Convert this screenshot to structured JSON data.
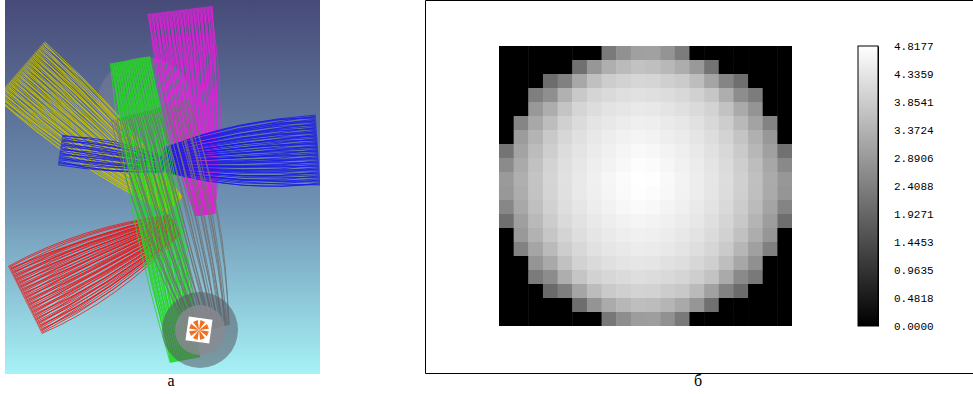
{
  "panel_labels": [
    "а",
    "б"
  ],
  "chart_data": {
    "type": "heatmap",
    "tick_labels": false,
    "cells": [
      [
        0,
        0,
        0,
        0,
        0,
        0,
        0,
        2.31,
        2.74,
        3.02,
        3.05,
        2.8,
        2.35,
        0,
        0,
        0,
        0,
        0,
        0,
        0
      ],
      [
        0,
        0,
        0,
        0,
        0,
        2.12,
        2.86,
        3.31,
        3.52,
        3.66,
        3.61,
        3.48,
        3.27,
        2.9,
        2.18,
        0,
        0,
        0,
        0,
        0
      ],
      [
        0,
        0,
        0,
        2.05,
        2.44,
        3.18,
        3.62,
        3.88,
        3.97,
        4.05,
        4.02,
        3.91,
        3.84,
        3.57,
        3.12,
        2.51,
        2.09,
        0,
        0,
        0
      ],
      [
        0,
        0,
        2.4,
        2.71,
        3.35,
        3.8,
        4.02,
        4.11,
        4.19,
        4.25,
        4.22,
        4.16,
        4.08,
        3.95,
        3.74,
        3.28,
        2.66,
        2.35,
        0,
        0
      ],
      [
        0,
        0,
        2.88,
        3.26,
        3.71,
        4.03,
        4.17,
        4.28,
        4.35,
        4.41,
        4.38,
        4.3,
        4.24,
        4.12,
        3.98,
        3.66,
        3.21,
        2.79,
        0,
        0
      ],
      [
        0,
        2.52,
        3.17,
        3.58,
        3.93,
        4.14,
        4.31,
        4.39,
        4.46,
        4.52,
        4.49,
        4.43,
        4.36,
        4.25,
        4.09,
        3.87,
        3.49,
        3.08,
        2.47,
        0
      ],
      [
        0,
        2.95,
        3.41,
        3.79,
        4.06,
        4.24,
        4.38,
        4.47,
        4.55,
        4.61,
        4.58,
        4.5,
        4.44,
        4.33,
        4.18,
        3.99,
        3.7,
        3.33,
        2.88,
        0
      ],
      [
        2.2,
        3.08,
        3.55,
        3.9,
        4.15,
        4.31,
        4.44,
        4.53,
        4.62,
        4.7,
        4.66,
        4.59,
        4.51,
        4.4,
        4.26,
        4.08,
        3.82,
        3.46,
        3.02,
        2.14
      ],
      [
        2.63,
        3.22,
        3.64,
        3.98,
        4.21,
        4.37,
        4.49,
        4.6,
        4.69,
        4.78,
        4.74,
        4.65,
        4.56,
        4.45,
        4.31,
        4.13,
        3.89,
        3.57,
        3.15,
        2.58
      ],
      [
        2.91,
        3.3,
        3.7,
        4.02,
        4.25,
        4.41,
        4.53,
        4.64,
        4.75,
        4.82,
        4.79,
        4.7,
        4.6,
        4.48,
        4.35,
        4.17,
        3.93,
        3.62,
        3.24,
        2.85
      ],
      [
        2.87,
        3.27,
        3.68,
        4.0,
        4.23,
        4.4,
        4.52,
        4.63,
        4.73,
        4.8,
        4.77,
        4.68,
        4.58,
        4.47,
        4.33,
        4.15,
        3.91,
        3.6,
        3.21,
        2.82
      ],
      [
        2.55,
        3.18,
        3.61,
        3.95,
        4.19,
        4.35,
        4.47,
        4.58,
        4.66,
        4.72,
        4.69,
        4.61,
        4.53,
        4.42,
        4.28,
        4.1,
        3.86,
        3.53,
        3.1,
        2.49
      ],
      [
        2.1,
        3.01,
        3.5,
        3.86,
        4.11,
        4.27,
        4.4,
        4.49,
        4.57,
        4.63,
        4.6,
        4.54,
        4.46,
        4.36,
        4.21,
        4.03,
        3.77,
        3.4,
        2.96,
        2.07
      ],
      [
        0,
        2.9,
        3.36,
        3.74,
        4.01,
        4.19,
        4.33,
        4.42,
        4.49,
        4.54,
        4.52,
        4.46,
        4.39,
        4.28,
        4.13,
        3.94,
        3.65,
        3.27,
        2.83,
        0
      ],
      [
        0,
        2.46,
        3.11,
        3.52,
        3.87,
        4.08,
        4.25,
        4.34,
        4.41,
        4.46,
        4.44,
        4.38,
        4.31,
        4.19,
        4.04,
        3.81,
        3.43,
        3.02,
        2.41,
        0
      ],
      [
        0,
        0,
        2.81,
        3.2,
        3.64,
        3.97,
        4.12,
        4.23,
        4.3,
        4.35,
        4.33,
        4.26,
        4.19,
        4.07,
        3.92,
        3.59,
        3.15,
        2.73,
        0,
        0
      ],
      [
        0,
        0,
        2.33,
        2.65,
        3.29,
        3.73,
        3.96,
        4.06,
        4.13,
        4.19,
        4.16,
        4.1,
        4.02,
        3.89,
        3.68,
        3.22,
        2.6,
        2.29,
        0,
        0
      ],
      [
        0,
        0,
        0,
        2.01,
        2.38,
        3.11,
        3.55,
        3.81,
        3.91,
        3.99,
        3.96,
        3.85,
        3.78,
        3.51,
        3.05,
        2.45,
        2.03,
        0,
        0,
        0
      ],
      [
        0,
        0,
        0,
        0,
        0,
        2.08,
        2.8,
        3.24,
        3.46,
        3.59,
        3.55,
        3.42,
        3.2,
        2.84,
        2.12,
        0,
        0,
        0,
        0,
        0
      ],
      [
        0,
        0,
        0,
        0,
        0,
        0,
        0,
        2.26,
        2.68,
        2.96,
        2.99,
        2.74,
        2.29,
        0,
        0,
        0,
        0,
        0,
        0,
        0
      ]
    ],
    "colorbar": {
      "range": [
        0,
        4.8177
      ],
      "ticks": [
        {
          "value": 0,
          "label": "0.0000"
        },
        0.4818,
        0.9635,
        1.4453,
        1.9271,
        2.4088,
        2.8906,
        3.3724,
        3.8541,
        4.3359,
        4.8177
      ]
    }
  }
}
